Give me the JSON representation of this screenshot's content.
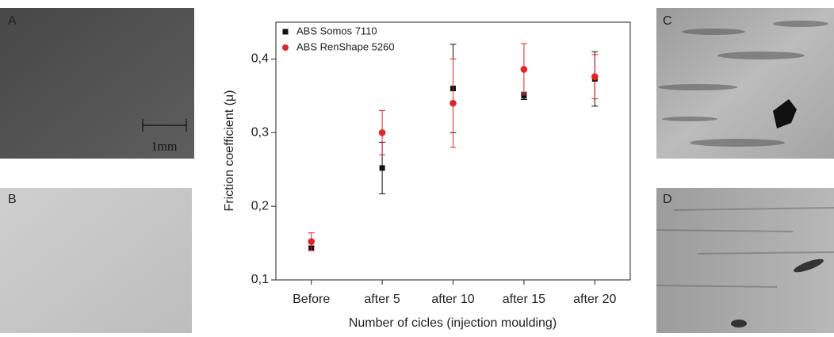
{
  "chart_data": {
    "type": "scatter",
    "x_label": "Number of cicles (injection moulding)",
    "y_label": "Friction coefficient (μ)",
    "categories": [
      "Before",
      "after 5",
      "after 10",
      "after 15",
      "after 20"
    ],
    "series": [
      {
        "name": "ABS Somos 7110",
        "color": "#111111",
        "marker": "square",
        "values": [
          0.143,
          0.252,
          0.36,
          0.35,
          0.373
        ],
        "errors": [
          0.003,
          0.035,
          0.06,
          0.005,
          0.037
        ]
      },
      {
        "name": "ABS RenShape 5260",
        "color": "#e0242a",
        "marker": "circle",
        "values": [
          0.152,
          0.3,
          0.34,
          0.386,
          0.376
        ],
        "errors": [
          0.012,
          0.03,
          0.06,
          0.035,
          0.03
        ]
      }
    ],
    "ylim": [
      0.1,
      0.45
    ],
    "yticks": [
      {
        "value": 0.1,
        "label": "0,1"
      },
      {
        "value": 0.2,
        "label": "0,2"
      },
      {
        "value": 0.3,
        "label": "0,3"
      },
      {
        "value": 0.4,
        "label": "0,4"
      }
    ],
    "legend": "top-left"
  },
  "panels": [
    {
      "label": "A"
    },
    {
      "label": "B"
    },
    {
      "label": "C"
    },
    {
      "label": "D"
    }
  ],
  "scale_bar": "1mm"
}
